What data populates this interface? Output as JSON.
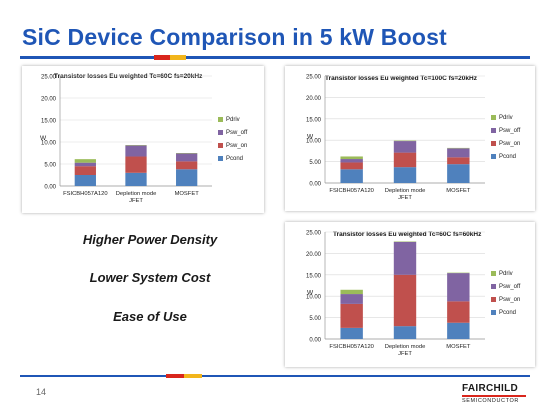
{
  "slide": {
    "title": "SiC Device Comparison in 5 kW Boost",
    "page_number": "14",
    "bullets": [
      "Higher Power Density",
      "Lower System Cost",
      "Ease of Use"
    ],
    "logo": {
      "main": "FAIRCHILD",
      "sub": "SEMICONDUCTOR"
    },
    "colors": {
      "title": "#1f56b6",
      "accent_red": "#d9261c",
      "accent_yellow": "#f2b51b"
    }
  },
  "chart_data": [
    {
      "type": "bar",
      "stacked": true,
      "title": "Transistor losses Eu weighted Tc=60C fs=20kHz",
      "ylabel": "W",
      "ylim": [
        0,
        25
      ],
      "yticks": [
        "0.00",
        "5.00",
        "10.00",
        "15.00",
        "20.00",
        "25.00"
      ],
      "categories": [
        "FSICBH057A120",
        "Depletion mode JFET",
        "MOSFET"
      ],
      "legend_position": "right",
      "series": [
        {
          "name": "Pcond",
          "color": "#4f81bd",
          "values": [
            2.5,
            3.0,
            3.8
          ]
        },
        {
          "name": "Psw_on",
          "color": "#c0504d",
          "values": [
            2.0,
            3.7,
            1.8
          ]
        },
        {
          "name": "Psw_off",
          "color": "#8064a2",
          "values": [
            0.8,
            2.5,
            1.8
          ]
        },
        {
          "name": "Pdriv",
          "color": "#9bbb59",
          "values": [
            0.8,
            0.1,
            0.1
          ]
        }
      ]
    },
    {
      "type": "bar",
      "stacked": true,
      "title": "Transistor losses Eu weighted Tc=100C fs=20kHz",
      "ylabel": "W",
      "ylim": [
        0,
        25
      ],
      "yticks": [
        "0.00",
        "5.00",
        "10.00",
        "15.00",
        "20.00",
        "25.00"
      ],
      "categories": [
        "FSICBH057A120",
        "Depletion mode JFET",
        "MOSFET"
      ],
      "legend_position": "right",
      "series": [
        {
          "name": "Pcond",
          "color": "#4f81bd",
          "values": [
            3.2,
            3.7,
            4.4
          ]
        },
        {
          "name": "Psw_on",
          "color": "#c0504d",
          "values": [
            1.6,
            3.4,
            1.6
          ]
        },
        {
          "name": "Psw_off",
          "color": "#8064a2",
          "values": [
            0.8,
            2.7,
            2.1
          ]
        },
        {
          "name": "Pdriv",
          "color": "#9bbb59",
          "values": [
            0.6,
            0.1,
            0.1
          ]
        }
      ]
    },
    {
      "type": "bar",
      "stacked": true,
      "title": "Transistor losses Eu weighted Tc=60C fs=60kHz",
      "ylabel": "W",
      "ylim": [
        0,
        25
      ],
      "yticks": [
        "0.00",
        "5.00",
        "10.00",
        "15.00",
        "20.00",
        "25.00"
      ],
      "categories": [
        "FSICBH057A120",
        "Depletion mode JFET",
        "MOSFET"
      ],
      "legend_position": "right",
      "series": [
        {
          "name": "Pcond",
          "color": "#4f81bd",
          "values": [
            2.6,
            3.0,
            3.8
          ]
        },
        {
          "name": "Psw_on",
          "color": "#c0504d",
          "values": [
            5.6,
            12.0,
            5.0
          ]
        },
        {
          "name": "Psw_off",
          "color": "#8064a2",
          "values": [
            2.3,
            7.7,
            6.6
          ]
        },
        {
          "name": "Pdriv",
          "color": "#9bbb59",
          "values": [
            1.0,
            0.1,
            0.1
          ]
        }
      ]
    }
  ]
}
